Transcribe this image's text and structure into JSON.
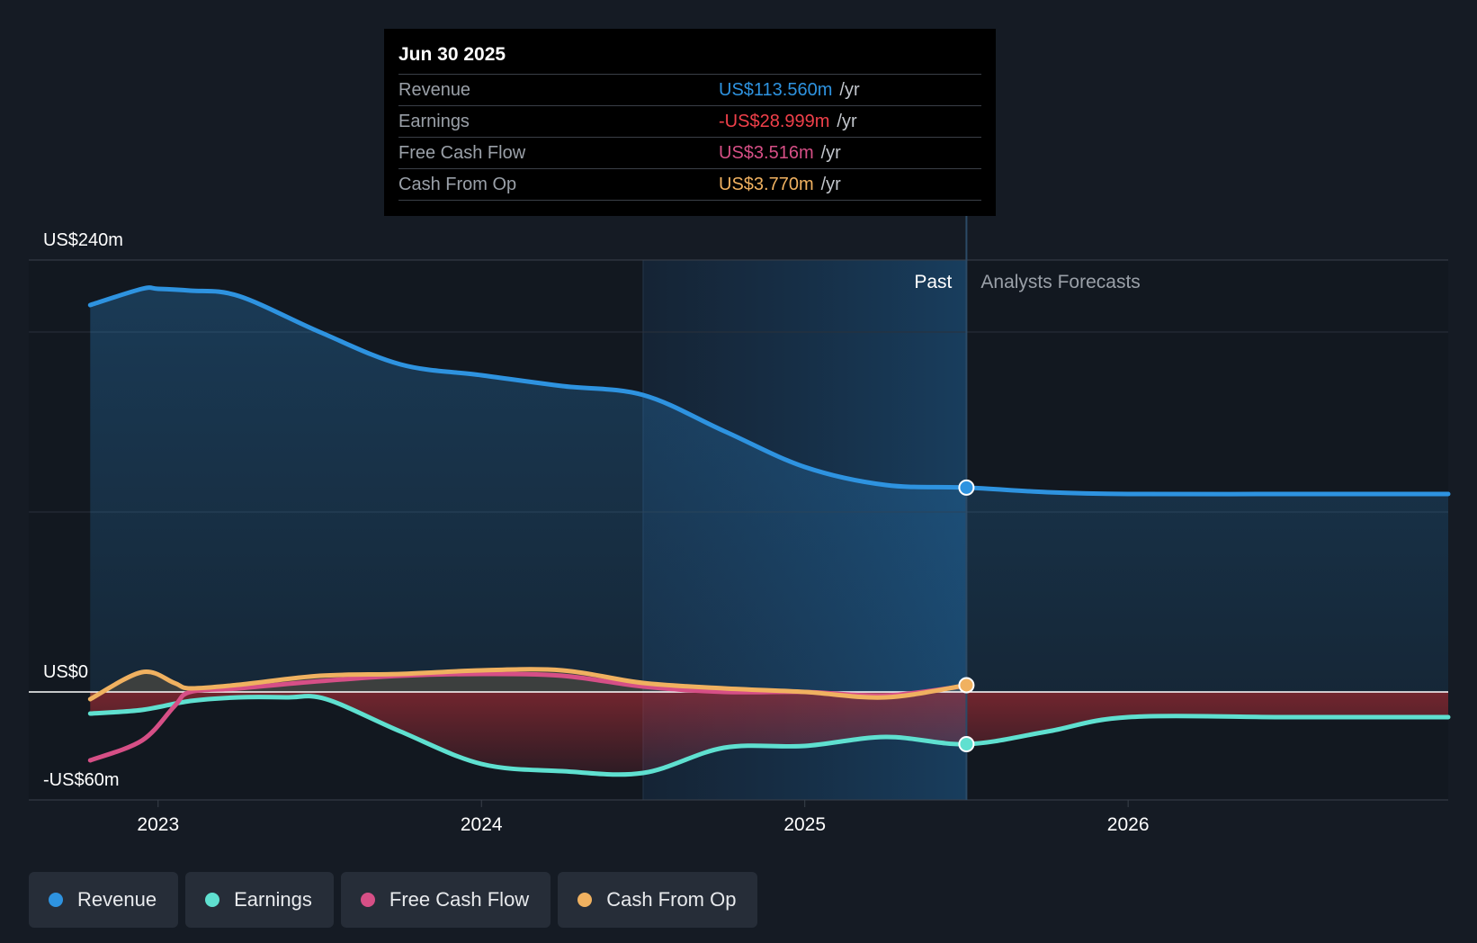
{
  "tooltip": {
    "date": "Jun 30 2025",
    "rows": [
      {
        "label": "Revenue",
        "value": "US$113.560m",
        "unit": "/yr",
        "color": "#2e93e0"
      },
      {
        "label": "Earnings",
        "value": "-US$28.999m",
        "unit": "/yr",
        "color": "#f0404a"
      },
      {
        "label": "Free Cash Flow",
        "value": "US$3.516m",
        "unit": "/yr",
        "color": "#d64f86"
      },
      {
        "label": "Cash From Op",
        "value": "US$3.770m",
        "unit": "/yr",
        "color": "#f0b160"
      }
    ]
  },
  "legend": [
    {
      "label": "Revenue",
      "color": "#2e93e0"
    },
    {
      "label": "Earnings",
      "color": "#5fe0d0"
    },
    {
      "label": "Free Cash Flow",
      "color": "#d64f86"
    },
    {
      "label": "Cash From Op",
      "color": "#f0b160"
    }
  ],
  "chart_data": {
    "type": "line",
    "y_tick_labels": [
      "US$240m",
      "US$0",
      "-US$60m"
    ],
    "ylim": [
      -60,
      240
    ],
    "xlim": [
      2022.6,
      2026.99
    ],
    "x_tick_labels": [
      "2023",
      "2024",
      "2025",
      "2026"
    ],
    "x_ticks": [
      2023,
      2024,
      2025,
      2026
    ],
    "past_label": "Past",
    "forecast_label": "Analysts Forecasts",
    "divider_x": 2025.5,
    "shade_start_x": 2024.5,
    "grid": true,
    "series": [
      {
        "name": "Revenue",
        "color": "#2e93e0",
        "points": [
          [
            2022.79,
            215
          ],
          [
            2022.95,
            224
          ],
          [
            2023.0,
            224
          ],
          [
            2023.1,
            223
          ],
          [
            2023.25,
            220
          ],
          [
            2023.5,
            200
          ],
          [
            2023.75,
            182
          ],
          [
            2024.0,
            176
          ],
          [
            2024.25,
            170
          ],
          [
            2024.5,
            165
          ],
          [
            2024.75,
            145
          ],
          [
            2025.0,
            125
          ],
          [
            2025.25,
            115
          ],
          [
            2025.5,
            113.56
          ],
          [
            2025.75,
            111
          ],
          [
            2026.0,
            110
          ],
          [
            2026.5,
            110
          ],
          [
            2026.99,
            110
          ]
        ],
        "marker_x": 2025.5
      },
      {
        "name": "Earnings",
        "color": "#5fe0d0",
        "points": [
          [
            2022.79,
            -12
          ],
          [
            2022.95,
            -10
          ],
          [
            2023.1,
            -5
          ],
          [
            2023.25,
            -3
          ],
          [
            2023.4,
            -3
          ],
          [
            2023.52,
            -4
          ],
          [
            2023.75,
            -22
          ],
          [
            2024.0,
            -40
          ],
          [
            2024.25,
            -44
          ],
          [
            2024.5,
            -45
          ],
          [
            2024.75,
            -31
          ],
          [
            2025.0,
            -30
          ],
          [
            2025.25,
            -25
          ],
          [
            2025.5,
            -29
          ],
          [
            2025.75,
            -22
          ],
          [
            2026.0,
            -14
          ],
          [
            2026.5,
            -14
          ],
          [
            2026.99,
            -14
          ]
        ],
        "marker_x": 2025.5
      },
      {
        "name": "Free Cash Flow",
        "color": "#d64f86",
        "points": [
          [
            2022.79,
            -38
          ],
          [
            2022.95,
            -27
          ],
          [
            2023.05,
            -8
          ],
          [
            2023.1,
            0
          ],
          [
            2023.25,
            2
          ],
          [
            2023.5,
            6
          ],
          [
            2023.75,
            9
          ],
          [
            2024.0,
            10
          ],
          [
            2024.25,
            9
          ],
          [
            2024.5,
            3
          ],
          [
            2024.75,
            0
          ],
          [
            2025.0,
            0
          ],
          [
            2025.25,
            -2
          ],
          [
            2025.5,
            3.516
          ]
        ]
      },
      {
        "name": "Cash From Op",
        "color": "#f0b160",
        "points": [
          [
            2022.79,
            -4
          ],
          [
            2022.95,
            11
          ],
          [
            2023.05,
            5
          ],
          [
            2023.1,
            2
          ],
          [
            2023.25,
            4
          ],
          [
            2023.5,
            9
          ],
          [
            2023.75,
            10
          ],
          [
            2024.0,
            12
          ],
          [
            2024.25,
            12
          ],
          [
            2024.5,
            5
          ],
          [
            2024.75,
            2
          ],
          [
            2025.0,
            0
          ],
          [
            2025.25,
            -3
          ],
          [
            2025.5,
            3.77
          ]
        ],
        "marker_x": 2025.5
      }
    ]
  }
}
